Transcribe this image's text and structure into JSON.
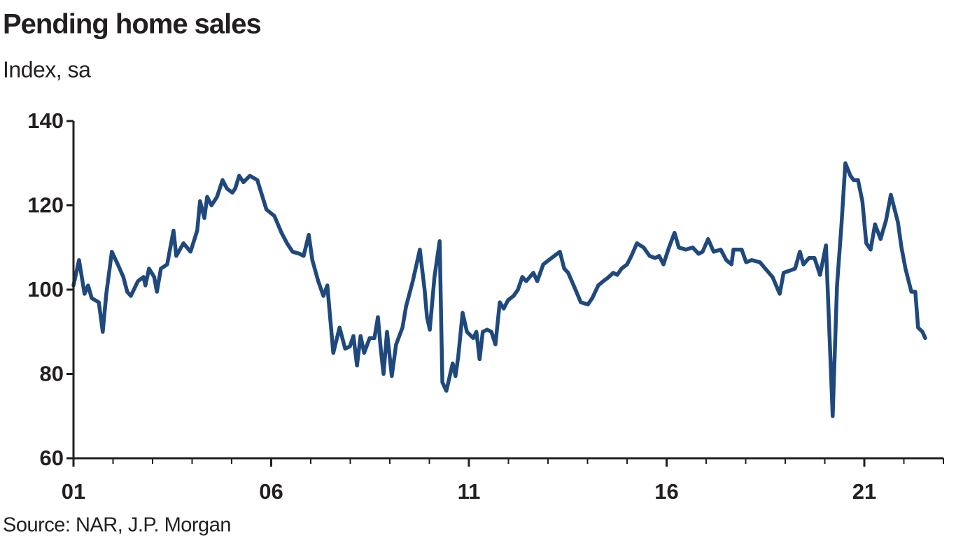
{
  "chart_data": {
    "type": "line",
    "title": "Pending home sales",
    "subtitle": "Index, sa",
    "source": "Source: NAR, J.P. Morgan",
    "series": [
      {
        "name": "Pending home sales",
        "color": "#1f497d",
        "x": [
          1.0,
          1.14,
          1.28,
          1.37,
          1.46,
          1.64,
          1.74,
          1.83,
          1.97,
          2.12,
          2.26,
          2.36,
          2.45,
          2.63,
          2.77,
          2.82,
          2.91,
          3.04,
          3.11,
          3.21,
          3.37,
          3.53,
          3.6,
          3.78,
          3.96,
          4.13,
          4.2,
          4.31,
          4.38,
          4.49,
          4.63,
          4.77,
          4.88,
          5.02,
          5.09,
          5.19,
          5.3,
          5.46,
          5.65,
          5.78,
          5.88,
          6.08,
          6.26,
          6.4,
          6.54,
          6.72,
          6.82,
          6.95,
          7.04,
          7.19,
          7.32,
          7.42,
          7.57,
          7.73,
          7.87,
          7.99,
          8.08,
          8.17,
          8.26,
          8.35,
          8.49,
          8.61,
          8.7,
          8.77,
          8.84,
          8.93,
          9.05,
          9.16,
          9.32,
          9.41,
          9.58,
          9.76,
          9.88,
          9.94,
          10.01,
          10.13,
          10.26,
          10.33,
          10.43,
          10.59,
          10.66,
          10.73,
          10.84,
          10.95,
          11.11,
          11.19,
          11.27,
          11.35,
          11.46,
          11.57,
          11.67,
          11.78,
          11.88,
          11.99,
          12.13,
          12.24,
          12.35,
          12.45,
          12.63,
          12.73,
          12.88,
          13.02,
          13.16,
          13.3,
          13.41,
          13.51,
          13.65,
          13.83,
          14.01,
          14.12,
          14.27,
          14.4,
          14.54,
          14.65,
          14.75,
          14.86,
          15.0,
          15.11,
          15.25,
          15.42,
          15.57,
          15.71,
          15.81,
          15.92,
          16.06,
          16.2,
          16.31,
          16.49,
          16.66,
          16.81,
          16.91,
          17.05,
          17.19,
          17.37,
          17.51,
          17.64,
          17.69,
          17.9,
          18.01,
          18.15,
          18.36,
          18.54,
          18.68,
          18.86,
          18.96,
          19.11,
          19.25,
          19.37,
          19.46,
          19.6,
          19.74,
          19.88,
          20.03,
          20.2,
          20.31,
          20.42,
          20.52,
          20.65,
          20.73,
          20.84,
          20.95,
          21.05,
          21.16,
          21.27,
          21.41,
          21.55,
          21.67,
          21.85,
          21.94,
          22.04,
          22.19,
          22.29,
          22.36,
          22.47,
          22.54
        ],
        "values": [
          101,
          107,
          99,
          101,
          98,
          97,
          90,
          99,
          109,
          106,
          103,
          99.5,
          98.5,
          102,
          103,
          101,
          105,
          103,
          99.5,
          105,
          106,
          114,
          108,
          111,
          109,
          114,
          121,
          117,
          122,
          120,
          122,
          126,
          124,
          123,
          124,
          127,
          125.5,
          127,
          126,
          122,
          119,
          117.5,
          113.5,
          111,
          109,
          108.5,
          108,
          113,
          107,
          102,
          98.5,
          101,
          85,
          91,
          86,
          86.5,
          89,
          82,
          89,
          85,
          88.5,
          88.5,
          93.5,
          86,
          80,
          90,
          79.5,
          87,
          91,
          96,
          102,
          109.5,
          100,
          93.5,
          90.5,
          103,
          111.5,
          78,
          76,
          82.5,
          79.5,
          84,
          94.5,
          90,
          88.5,
          90,
          83.5,
          90,
          90.5,
          90,
          87,
          97,
          95.5,
          97.5,
          98.5,
          100,
          103,
          102,
          104,
          102,
          106,
          107,
          108,
          109,
          105,
          104,
          101,
          97,
          96.5,
          98,
          101,
          102,
          103,
          104,
          103.5,
          105,
          106,
          108,
          111,
          110,
          108,
          107.5,
          108,
          106,
          110,
          113.5,
          110,
          109.5,
          110,
          108.5,
          109,
          112,
          109,
          109.5,
          107,
          106,
          109.5,
          109.5,
          106.5,
          107,
          106.5,
          104.5,
          103,
          99,
          104,
          104.5,
          105,
          109,
          106,
          107.5,
          107.5,
          103.5,
          110.5,
          70,
          101,
          115,
          130,
          127,
          126,
          126,
          121,
          111,
          109.5,
          115.5,
          112,
          116.5,
          122.5,
          116,
          110,
          105,
          99.5,
          99.5,
          91,
          90,
          88.5
        ]
      }
    ],
    "xlim": [
      1,
      23
    ],
    "xticks": [
      {
        "value": 1,
        "label": "01"
      },
      {
        "value": 6,
        "label": "06"
      },
      {
        "value": 11,
        "label": "11"
      },
      {
        "value": 16,
        "label": "16"
      },
      {
        "value": 21,
        "label": "21"
      }
    ],
    "xminorticks": [
      2,
      3,
      4,
      5,
      7,
      8,
      9,
      10,
      12,
      13,
      14,
      15,
      17,
      18,
      19,
      20,
      22,
      23
    ],
    "ylim": [
      60,
      140
    ],
    "yticks": [
      60,
      80,
      100,
      120,
      140
    ],
    "grid": false
  }
}
